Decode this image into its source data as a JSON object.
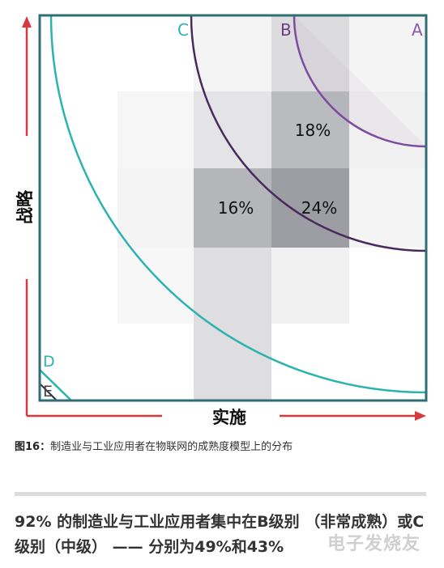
{
  "diagram": {
    "zone_letters": {
      "a": "A",
      "b": "B",
      "c": "C",
      "d": "D",
      "e": "E"
    },
    "axis_y_label": "战略",
    "axis_x_label": "实施",
    "cell_labels": {
      "top": "18%",
      "mid_left": "16%",
      "mid_right": "24%"
    },
    "colors": {
      "frame": "#2f6f73",
      "zone_a": "#7c4d9e",
      "zone_b": "#4a2a5e",
      "zone_c": "#2bb3b0",
      "zone_d": "#2bb3b0",
      "arrows": "#d6393f"
    }
  },
  "caption": {
    "label": "图16：",
    "text": "制造业与工业应用者在物联网的成熟度模型上的分布"
  },
  "summary": {
    "text": "92% 的制造业与工业应用者集中在B级别 （非常成熟）或C级别（中级） —— 分别为49%和43%"
  },
  "watermark": {
    "text": "电子发烧友"
  }
}
